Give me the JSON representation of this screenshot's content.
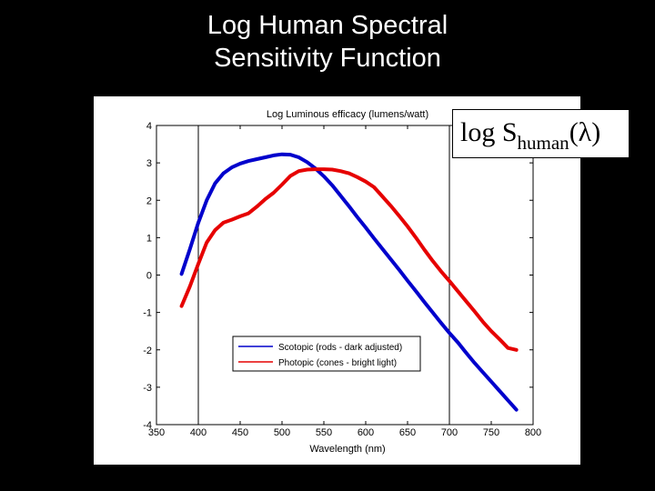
{
  "slide": {
    "title_line1": "Log Human Spectral",
    "title_line2": "Sensitivity Function"
  },
  "equation": {
    "prefix": "log S",
    "subscript": "human",
    "suffix": "(λ)"
  },
  "chart_data": {
    "type": "line",
    "title": "Log Luminous efficacy (lumens/watt)",
    "xlabel": "Wavelength (nm)",
    "ylabel": "",
    "xlim": [
      350,
      800
    ],
    "ylim": [
      -4,
      4
    ],
    "xticks": [
      350,
      400,
      450,
      500,
      550,
      600,
      650,
      700,
      750,
      800
    ],
    "yticks": [
      4,
      3,
      2,
      1,
      0,
      -1,
      -2,
      -3,
      -4
    ],
    "reference_lines_x": [
      400,
      700
    ],
    "legend_position": "lower-center",
    "series": [
      {
        "name": "Scotopic (rods - dark adjusted)",
        "color": "#0000cc",
        "x": [
          380,
          390,
          400,
          410,
          420,
          430,
          440,
          450,
          460,
          470,
          480,
          490,
          500,
          510,
          520,
          530,
          540,
          550,
          560,
          570,
          580,
          590,
          600,
          610,
          620,
          630,
          640,
          650,
          660,
          670,
          680,
          690,
          700,
          710,
          720,
          730,
          740,
          750,
          760,
          770,
          780
        ],
        "values": [
          0.03,
          0.7,
          1.4,
          2.0,
          2.45,
          2.72,
          2.88,
          2.98,
          3.05,
          3.1,
          3.15,
          3.2,
          3.23,
          3.22,
          3.15,
          3.02,
          2.85,
          2.64,
          2.4,
          2.12,
          1.84,
          1.55,
          1.27,
          0.98,
          0.7,
          0.42,
          0.14,
          -0.15,
          -0.43,
          -0.72,
          -1.0,
          -1.28,
          -1.55,
          -1.8,
          -2.08,
          -2.35,
          -2.6,
          -2.85,
          -3.1,
          -3.35,
          -3.6
        ]
      },
      {
        "name": "Photopic (cones - bright light)",
        "color": "#e60000",
        "x": [
          380,
          390,
          400,
          410,
          420,
          430,
          440,
          450,
          460,
          470,
          480,
          490,
          500,
          510,
          520,
          530,
          540,
          550,
          560,
          570,
          580,
          590,
          600,
          610,
          620,
          630,
          640,
          650,
          660,
          670,
          680,
          690,
          700,
          710,
          720,
          730,
          740,
          750,
          760,
          770,
          780
        ],
        "values": [
          -0.83,
          -0.3,
          0.3,
          0.87,
          1.2,
          1.4,
          1.48,
          1.57,
          1.65,
          1.83,
          2.03,
          2.2,
          2.42,
          2.65,
          2.78,
          2.82,
          2.83,
          2.83,
          2.82,
          2.78,
          2.72,
          2.62,
          2.5,
          2.35,
          2.1,
          1.85,
          1.58,
          1.3,
          1.0,
          0.68,
          0.38,
          0.1,
          -0.16,
          -0.43,
          -0.7,
          -0.97,
          -1.25,
          -1.5,
          -1.72,
          -1.95,
          -2.0
        ]
      }
    ]
  }
}
